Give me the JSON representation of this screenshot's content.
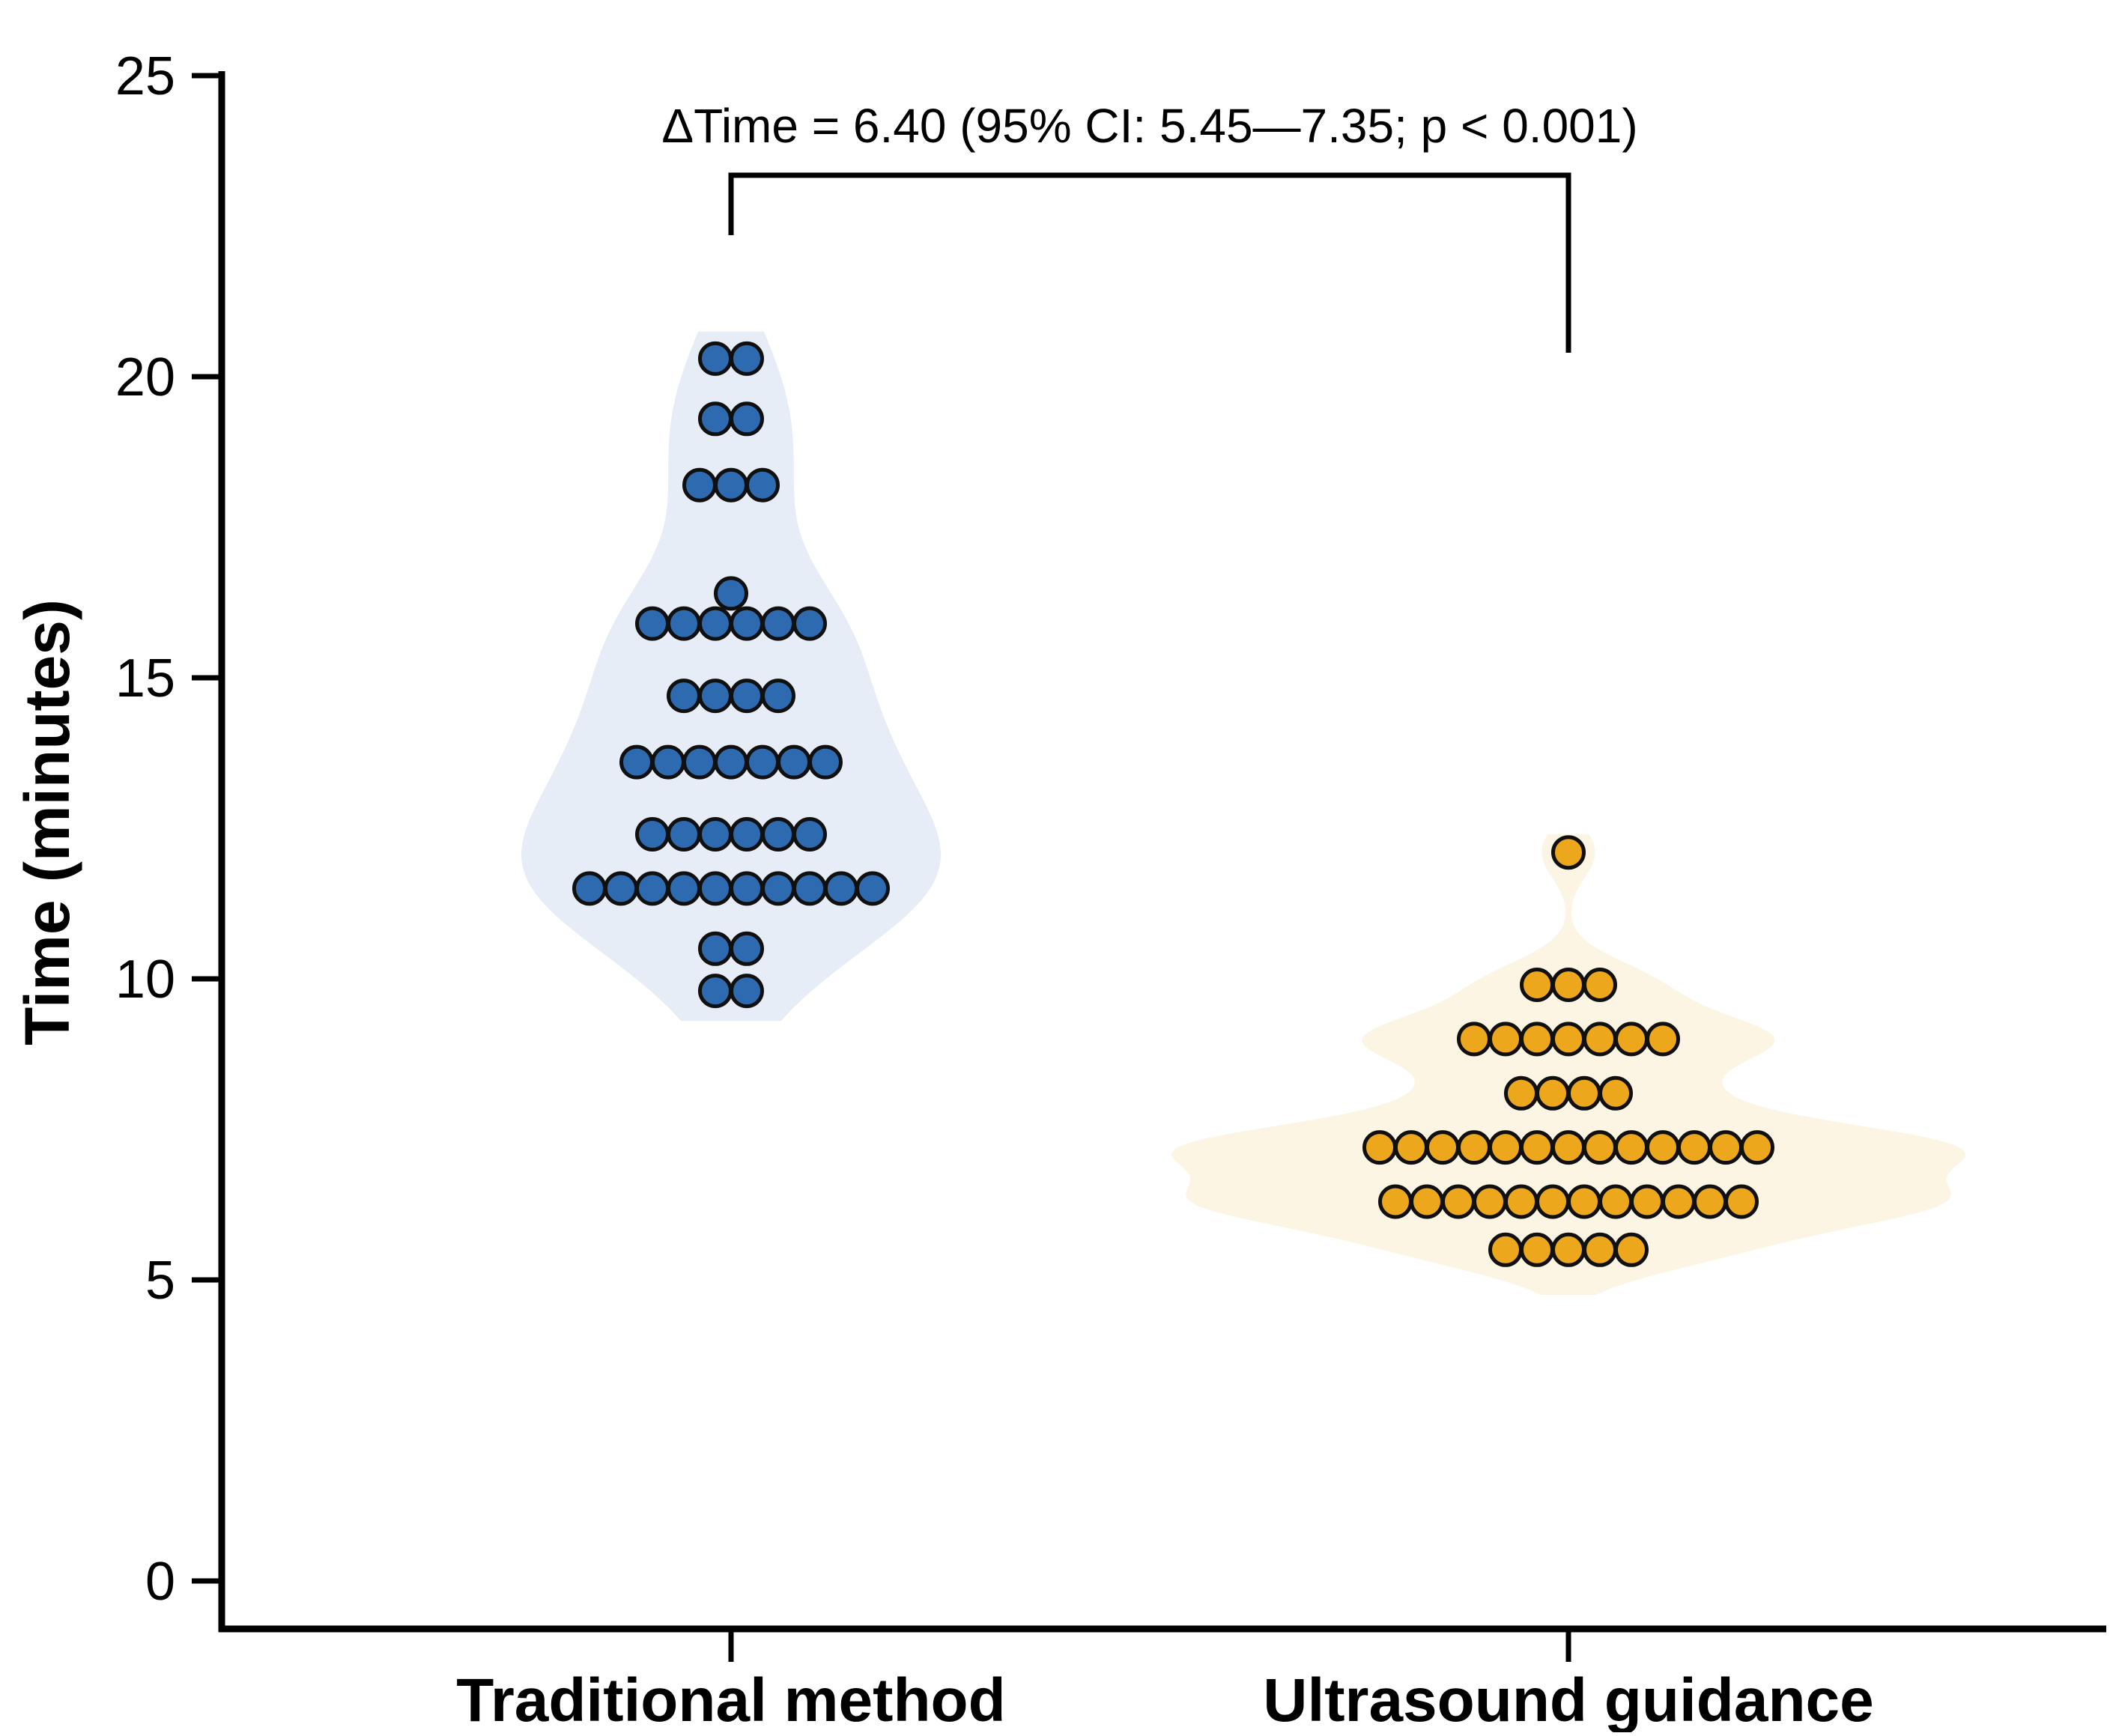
{
  "figure": {
    "annotation_text": "ΔTime = 6.40 (95% CI: 5.45—7.35; p < 0.001)",
    "y_axis_label": "Time (minutes)",
    "x_categories": [
      "Traditional method",
      "Ultrasound guidance"
    ]
  },
  "chart_data": {
    "type": "scatter",
    "variant": "violin_dotplot",
    "title": "",
    "xlabel": "",
    "ylabel": "Time (minutes)",
    "ylim": [
      -1.5,
      25
    ],
    "yticks": [
      "0",
      "5",
      "10",
      "15",
      "20",
      "25"
    ],
    "ytick_values": [
      0,
      5,
      10,
      15,
      20,
      25
    ],
    "grid": false,
    "legend": null,
    "categories": [
      "Traditional method",
      "Ultrasound guidance"
    ],
    "annotation": {
      "text": "ΔTime = 6.40 (95% CI: 5.45—7.35; p < 0.001)",
      "delta_time": 6.4,
      "ci_low": 5.45,
      "ci_high": 7.35,
      "p_value": "< 0.001"
    },
    "series": [
      {
        "name": "Traditional method",
        "n": 45,
        "dot_color": "#2e6ab0",
        "violin_color": "#e7edf6",
        "dot_rows": [
          {
            "time": 20.3,
            "count": 2
          },
          {
            "time": 19.3,
            "count": 2
          },
          {
            "time": 18.2,
            "count": 3
          },
          {
            "time": 16.4,
            "count": 1
          },
          {
            "time": 15.9,
            "count": 6
          },
          {
            "time": 14.7,
            "count": 4
          },
          {
            "time": 13.6,
            "count": 7
          },
          {
            "time": 12.4,
            "count": 6
          },
          {
            "time": 11.5,
            "count": 10
          },
          {
            "time": 10.5,
            "count": 2
          },
          {
            "time": 9.8,
            "count": 2
          }
        ]
      },
      {
        "name": "Ultrasound guidance",
        "n": 45,
        "dot_color": "#eda71c",
        "violin_color": "#fcf5e4",
        "dot_rows": [
          {
            "time": 12.1,
            "count": 1
          },
          {
            "time": 9.9,
            "count": 3
          },
          {
            "time": 9.0,
            "count": 7
          },
          {
            "time": 8.1,
            "count": 4
          },
          {
            "time": 7.2,
            "count": 13
          },
          {
            "time": 6.3,
            "count": 12
          },
          {
            "time": 5.5,
            "count": 5
          }
        ]
      }
    ],
    "colors": {
      "axis": "#000000",
      "text": "#000000",
      "dot_outline": "#101010"
    }
  }
}
